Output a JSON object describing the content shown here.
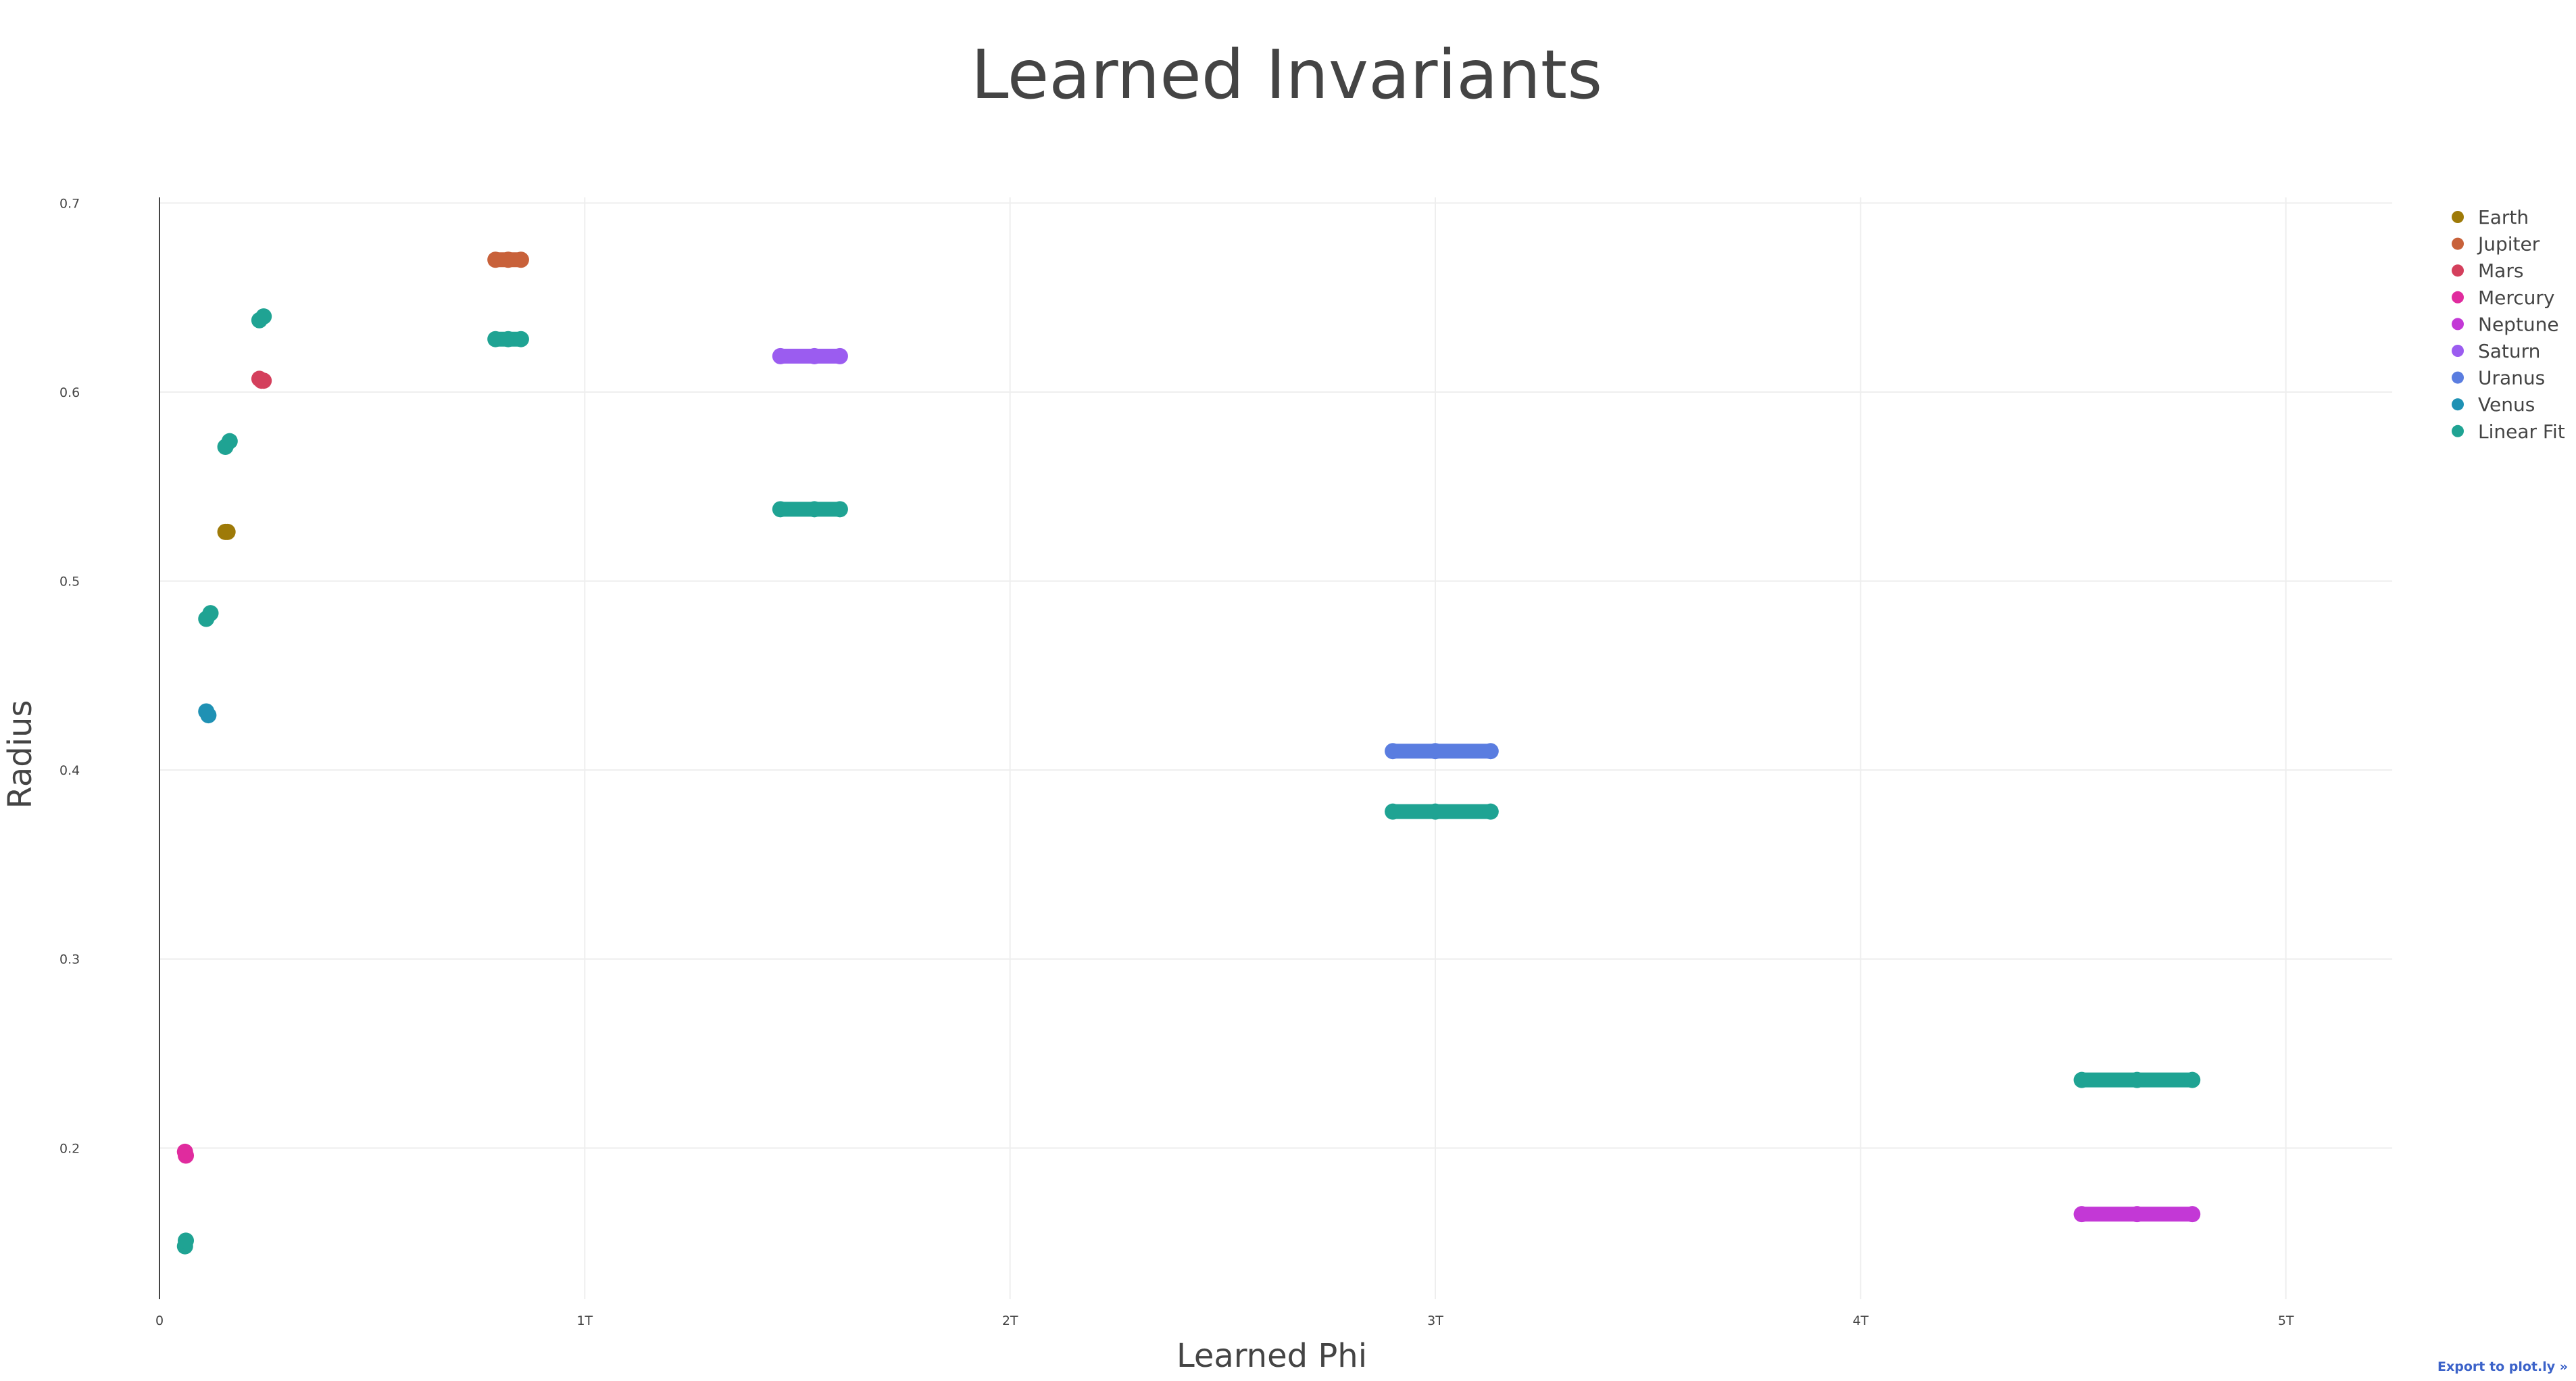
{
  "chart_data": {
    "type": "scatter",
    "title": "Learned Invariants",
    "xlabel": "Learned Phi",
    "ylabel": "Radius",
    "xlim": [
      0,
      5.25
    ],
    "ylim": [
      0.12,
      0.703
    ],
    "x_ticks": [
      {
        "value": 0,
        "label": "0"
      },
      {
        "value": 1,
        "label": "1T"
      },
      {
        "value": 2,
        "label": "2T"
      },
      {
        "value": 3,
        "label": "3T"
      },
      {
        "value": 4,
        "label": "4T"
      },
      {
        "value": 5,
        "label": "5T"
      }
    ],
    "y_ticks": [
      {
        "value": 0.2,
        "label": "0.2"
      },
      {
        "value": 0.3,
        "label": "0.3"
      },
      {
        "value": 0.4,
        "label": "0.4"
      },
      {
        "value": 0.5,
        "label": "0.5"
      },
      {
        "value": 0.6,
        "label": "0.6"
      },
      {
        "value": 0.7,
        "label": "0.7"
      }
    ],
    "grid": true,
    "legend_position": "top-right",
    "series": [
      {
        "name": "Earth",
        "color": "#9e7a08",
        "points": [
          {
            "x": 0.155,
            "y": 0.526
          },
          {
            "x": 0.16,
            "y": 0.526
          }
        ]
      },
      {
        "name": "Jupiter",
        "color": "#c8613a",
        "points": [
          {
            "x": 0.79,
            "y": 0.67
          },
          {
            "x": 0.82,
            "y": 0.67
          },
          {
            "x": 0.85,
            "y": 0.67
          }
        ]
      },
      {
        "name": "Mars",
        "color": "#d43f5c",
        "points": [
          {
            "x": 0.235,
            "y": 0.607
          },
          {
            "x": 0.24,
            "y": 0.606
          },
          {
            "x": 0.245,
            "y": 0.606
          }
        ]
      },
      {
        "name": "Mercury",
        "color": "#e02b9e",
        "points": [
          {
            "x": 0.06,
            "y": 0.198
          },
          {
            "x": 0.062,
            "y": 0.196
          }
        ]
      },
      {
        "name": "Neptune",
        "color": "#c338d6",
        "points": [
          {
            "x": 4.52,
            "y": 0.165
          },
          {
            "x": 4.65,
            "y": 0.165
          },
          {
            "x": 4.78,
            "y": 0.165
          }
        ]
      },
      {
        "name": "Saturn",
        "color": "#9b5cf0",
        "points": [
          {
            "x": 1.46,
            "y": 0.619
          },
          {
            "x": 1.54,
            "y": 0.619
          },
          {
            "x": 1.6,
            "y": 0.619
          }
        ]
      },
      {
        "name": "Uranus",
        "color": "#5a7de0",
        "points": [
          {
            "x": 2.9,
            "y": 0.41
          },
          {
            "x": 3.0,
            "y": 0.41
          },
          {
            "x": 3.13,
            "y": 0.41
          }
        ]
      },
      {
        "name": "Venus",
        "color": "#1f91b4",
        "points": [
          {
            "x": 0.11,
            "y": 0.431
          },
          {
            "x": 0.115,
            "y": 0.429
          }
        ]
      },
      {
        "name": "Linear Fit",
        "color": "#1fa393",
        "points": [
          {
            "x": 0.06,
            "y": 0.148
          },
          {
            "x": 0.062,
            "y": 0.151
          },
          {
            "x": 0.11,
            "y": 0.48
          },
          {
            "x": 0.12,
            "y": 0.483
          },
          {
            "x": 0.155,
            "y": 0.571
          },
          {
            "x": 0.165,
            "y": 0.574
          },
          {
            "x": 0.235,
            "y": 0.638
          },
          {
            "x": 0.245,
            "y": 0.64
          },
          {
            "x": 0.79,
            "y": 0.628
          },
          {
            "x": 0.82,
            "y": 0.628
          },
          {
            "x": 0.85,
            "y": 0.628
          },
          {
            "x": 1.46,
            "y": 0.538
          },
          {
            "x": 1.54,
            "y": 0.538
          },
          {
            "x": 1.6,
            "y": 0.538
          },
          {
            "x": 2.9,
            "y": 0.378
          },
          {
            "x": 3.0,
            "y": 0.378
          },
          {
            "x": 3.13,
            "y": 0.378
          },
          {
            "x": 4.52,
            "y": 0.236
          },
          {
            "x": 4.65,
            "y": 0.236
          },
          {
            "x": 4.78,
            "y": 0.236
          }
        ]
      }
    ]
  },
  "export_link": "Export to plot.ly »"
}
